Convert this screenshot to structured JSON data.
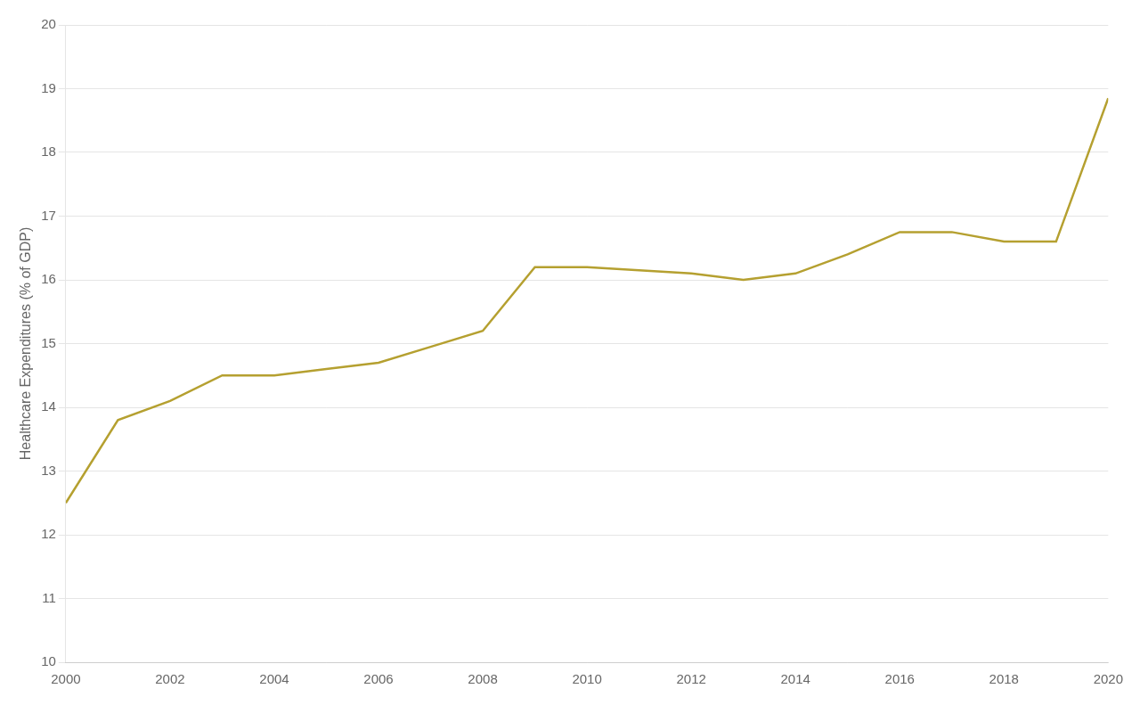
{
  "chart_data": {
    "type": "line",
    "ylabel": "Healthcare Expenditures (% of GDP)",
    "x": [
      2000,
      2001,
      2002,
      2003,
      2004,
      2005,
      2006,
      2007,
      2008,
      2009,
      2010,
      2011,
      2012,
      2013,
      2014,
      2015,
      2016,
      2017,
      2018,
      2019,
      2020
    ],
    "values": [
      12.5,
      13.8,
      14.1,
      14.5,
      14.5,
      14.6,
      14.7,
      14.95,
      15.2,
      16.2,
      16.2,
      16.15,
      16.1,
      16.0,
      16.1,
      16.4,
      16.75,
      16.75,
      16.6,
      16.6,
      18.85
    ],
    "color": "#b5a030",
    "xlim": [
      2000,
      2020
    ],
    "ylim": [
      10,
      20
    ],
    "xticks": [
      2000,
      2002,
      2004,
      2006,
      2008,
      2010,
      2012,
      2014,
      2016,
      2018,
      2020
    ],
    "yticks": [
      10,
      11,
      12,
      13,
      14,
      15,
      16,
      17,
      18,
      19,
      20
    ],
    "grid": "y"
  }
}
